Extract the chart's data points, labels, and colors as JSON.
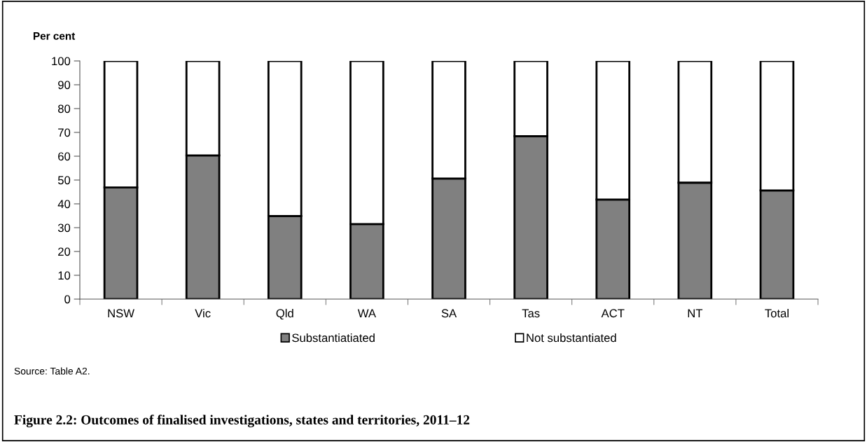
{
  "chart_data": {
    "type": "bar",
    "stacked": true,
    "title": "Figure 2.2: Outcomes of finalised investigations, states and territories, 2011–12",
    "ylabel": "Per cent",
    "categories": [
      "NSW",
      "Vic",
      "Qld",
      "WA",
      "SA",
      "Tas",
      "ACT",
      "NT",
      "Total"
    ],
    "series": [
      {
        "name": "Substantiatiated",
        "color": "#808080",
        "values": [
          46.9,
          60.3,
          34.9,
          31.5,
          50.6,
          68.4,
          41.8,
          48.9,
          45.6
        ]
      },
      {
        "name": "Not substantiated",
        "color": "#ffffff",
        "values": [
          53.1,
          39.7,
          65.1,
          68.5,
          49.4,
          31.6,
          58.2,
          51.1,
          54.4
        ]
      }
    ],
    "ylim": [
      0,
      100
    ],
    "yticks": [
      0,
      10,
      20,
      30,
      40,
      50,
      60,
      70,
      80,
      90,
      100
    ],
    "grid": false,
    "legend": "bottom",
    "annotations": [
      "Source: Table A2."
    ]
  }
}
